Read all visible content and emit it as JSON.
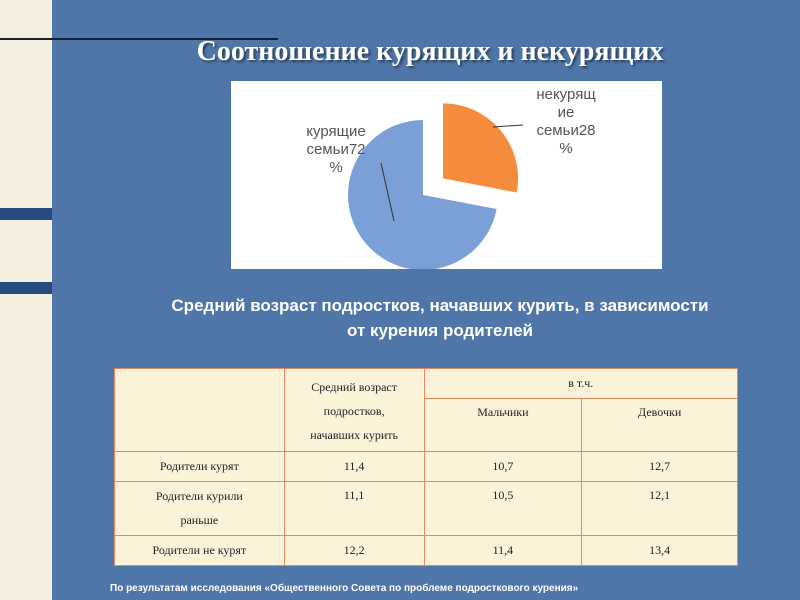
{
  "slide": {
    "title": "Соотношение курящих и некурящих",
    "subtitle_line1": "Средний возраст подростков, начавших курить, в зависимости",
    "subtitle_line2": "от курения родителей",
    "footer": "По результатам исследования «Общественного Совета по проблеме подросткового курения»"
  },
  "chart_data": {
    "type": "pie",
    "slices": [
      {
        "label": "курящие\nсемьи72\n%",
        "value": 72,
        "color": "#7b9fd7"
      },
      {
        "label": "некурящ\nие\nсемьи28\n%",
        "value": 28,
        "color": "#f58c3c"
      }
    ],
    "exploded": true
  },
  "table": {
    "header_col1": "Средний возраст подростков, начавших курить",
    "header_col1_lines": [
      "Средний возраст",
      "подростков,",
      "начавших курить"
    ],
    "header_group": "в т.ч.",
    "header_boys": "Мальчики",
    "header_girls": "Девочки",
    "rows": [
      {
        "label_lines": [
          "Родители курят"
        ],
        "avg": "11,4",
        "boys": "10,7",
        "girls": "12,7"
      },
      {
        "label_lines": [
          "Родители курили",
          "раньше"
        ],
        "avg": "11,1",
        "boys": "10,5",
        "girls": "12,1"
      },
      {
        "label_lines": [
          "Родители не курят"
        ],
        "avg": "12,2",
        "boys": "11,4",
        "girls": "13,4"
      }
    ]
  }
}
